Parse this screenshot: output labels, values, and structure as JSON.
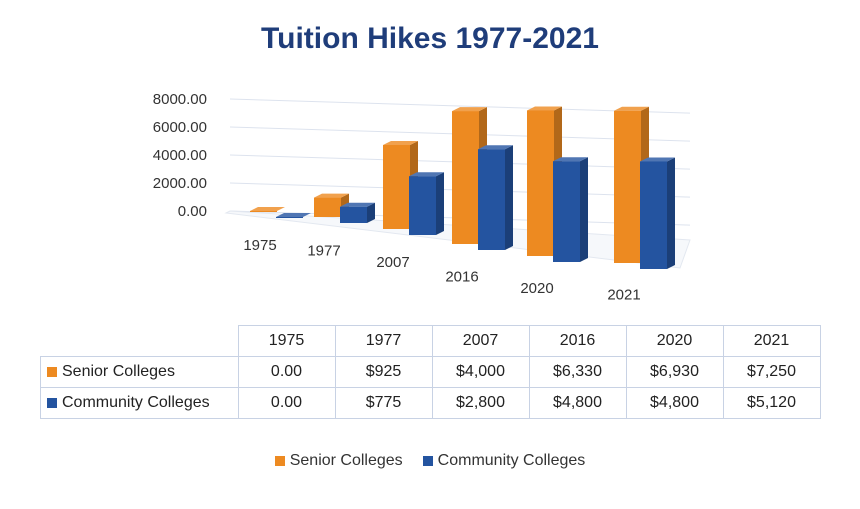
{
  "chart_data": {
    "type": "bar",
    "title": "Tuition Hikes 1977-2021",
    "categories": [
      "1975",
      "1977",
      "2007",
      "2016",
      "2020",
      "2021"
    ],
    "series": [
      {
        "name": "Senior Colleges",
        "values": [
          0,
          925,
          4000,
          6330,
          6930,
          7250
        ],
        "color": "#ed8a21"
      },
      {
        "name": "Community Colleges",
        "values": [
          0,
          775,
          2800,
          4800,
          4800,
          5120
        ],
        "color": "#2454a0"
      }
    ],
    "ylim": [
      0,
      8000
    ],
    "yticks": [
      "0.00",
      "2000.00",
      "4000.00",
      "6000.00",
      "8000.00"
    ],
    "grid": true,
    "legend": "bottom",
    "table": {
      "rows": [
        {
          "label": "Senior Colleges",
          "cells": [
            "0.00",
            "$925",
            "$4,000",
            "$6,330",
            "$6,930",
            "$7,250"
          ]
        },
        {
          "label": "Community Colleges",
          "cells": [
            "0.00",
            "$775",
            "$2,800",
            "$4,800",
            "$4,800",
            "$5,120"
          ]
        }
      ]
    }
  }
}
